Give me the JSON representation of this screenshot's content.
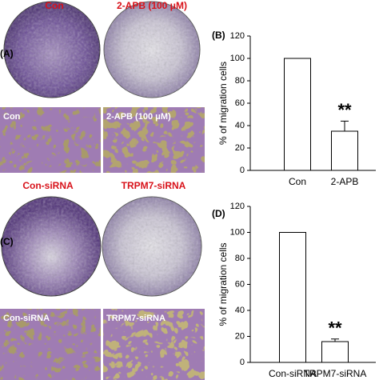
{
  "panels": [
    {
      "label": "(A)",
      "dish_labels": [
        "Con",
        "2-APB (100 μM)"
      ],
      "micro_labels": [
        "Con",
        "2-APB (100 μM)"
      ]
    },
    {
      "label": "(C)",
      "dish_labels": [
        "Con-siRNA",
        "TRPM7-siRNA"
      ],
      "micro_labels": [
        "Con-siRNA",
        "TRPM7-siRNA"
      ]
    }
  ],
  "chart_data": [
    {
      "type": "bar",
      "panel_label": "(B)",
      "ylabel": "% of migration cells",
      "categories": [
        "Con",
        "2-APB"
      ],
      "values": [
        100,
        35
      ],
      "errors": [
        null,
        9
      ],
      "value_annotations": [
        null,
        "**"
      ],
      "color": "#ffffff",
      "ylim": [
        0,
        120
      ],
      "yticks": [
        0,
        20,
        40,
        60,
        80,
        100,
        120
      ]
    },
    {
      "type": "bar",
      "panel_label": "(D)",
      "ylabel": "% of migration cells",
      "categories": [
        "Con-siRNA",
        "TRPM7-siRNA"
      ],
      "values": [
        100,
        16
      ],
      "errors": [
        null,
        2
      ],
      "value_annotations": [
        null,
        "**"
      ],
      "color": "#ffffff",
      "ylim": [
        0,
        120
      ],
      "yticks": [
        0,
        20,
        40,
        60,
        80,
        100,
        120
      ]
    }
  ]
}
